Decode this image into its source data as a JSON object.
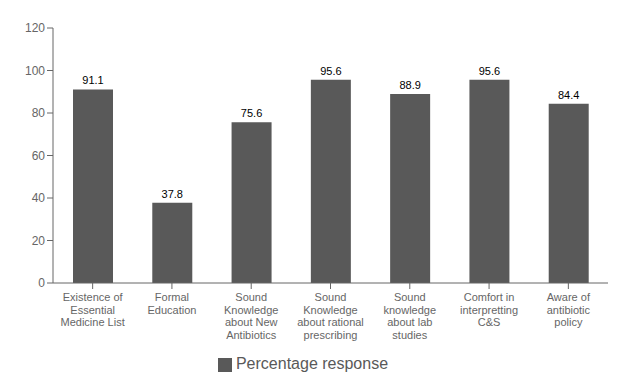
{
  "chart_data": {
    "type": "bar",
    "categories": [
      "Existence of\nEssential\nMedicine List",
      "Formal\nEducation",
      "Sound\nKnowledge\nabout New\nAntibiotics",
      "Sound\nKnowledge\nabout rational\nprescribing",
      "Sound\nknowledge\nabout lab\nstudies",
      "Comfort in\ninterpretting\nC&S",
      "Aware of\nantibiotic\npolicy"
    ],
    "series": [
      {
        "name": "Percentage response",
        "color": "#595959",
        "values": [
          91.1,
          37.8,
          75.6,
          95.6,
          88.9,
          95.6,
          84.4
        ]
      }
    ],
    "ylim": [
      0,
      120
    ],
    "yticks": [
      0,
      20,
      40,
      60,
      80,
      100,
      120
    ],
    "grid": false,
    "legend": "bottom",
    "data_labels": true
  }
}
